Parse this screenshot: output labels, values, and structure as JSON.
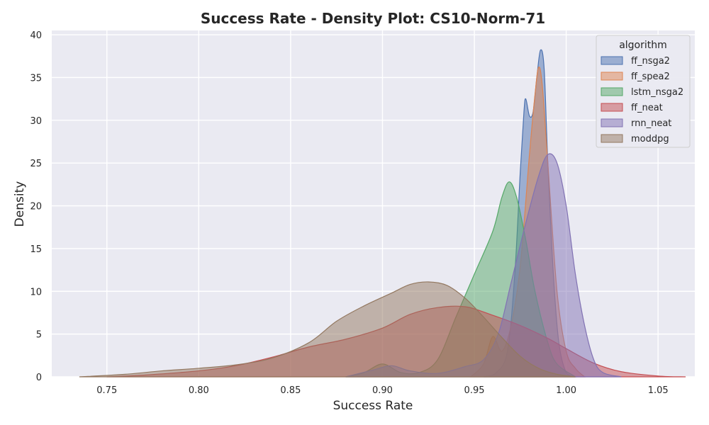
{
  "chart_data": {
    "type": "area",
    "title": "Success Rate - Density Plot: CS10-Norm-71",
    "xlabel": "Success Rate",
    "ylabel": "Density",
    "xlim": [
      0.72,
      1.07
    ],
    "ylim": [
      0,
      40.5
    ],
    "xticks": [
      0.75,
      0.8,
      0.85,
      0.9,
      0.95,
      1.0,
      1.05
    ],
    "xtick_labels": [
      "0.75",
      "0.80",
      "0.85",
      "0.90",
      "0.95",
      "1.00",
      "1.05"
    ],
    "yticks": [
      0,
      5,
      10,
      15,
      20,
      25,
      30,
      35,
      40
    ],
    "ytick_labels": [
      "0",
      "5",
      "10",
      "15",
      "20",
      "25",
      "30",
      "35",
      "40"
    ],
    "grid": true,
    "legend": {
      "title": "algorithm",
      "position": "top-right"
    },
    "series": [
      {
        "name": "ff_nsga2",
        "color": "#4c72b0",
        "points": [
          [
            0.955,
            0
          ],
          [
            0.962,
            0.5
          ],
          [
            0.968,
            3
          ],
          [
            0.972,
            12
          ],
          [
            0.975,
            24
          ],
          [
            0.977,
            31
          ],
          [
            0.978,
            32.5
          ],
          [
            0.98,
            30.5
          ],
          [
            0.982,
            31
          ],
          [
            0.984,
            35
          ],
          [
            0.986,
            38.2
          ],
          [
            0.988,
            36
          ],
          [
            0.99,
            25
          ],
          [
            0.993,
            12
          ],
          [
            0.996,
            4
          ],
          [
            1.0,
            0.5
          ],
          [
            1.005,
            0
          ]
        ]
      },
      {
        "name": "ff_spea2",
        "color": "#dd8452",
        "points": [
          [
            0.948,
            0
          ],
          [
            0.955,
            1.5
          ],
          [
            0.96,
            4.7
          ],
          [
            0.965,
            3
          ],
          [
            0.97,
            6
          ],
          [
            0.975,
            13
          ],
          [
            0.98,
            26
          ],
          [
            0.983,
            33
          ],
          [
            0.985,
            36.2
          ],
          [
            0.987,
            34
          ],
          [
            0.99,
            25
          ],
          [
            0.995,
            10
          ],
          [
            1.0,
            3
          ],
          [
            1.005,
            1
          ],
          [
            1.01,
            0
          ]
        ]
      },
      {
        "name": "lstm_nsga2",
        "color": "#55a868",
        "points": [
          [
            0.88,
            0
          ],
          [
            0.89,
            0.5
          ],
          [
            0.9,
            1.5
          ],
          [
            0.91,
            0.5
          ],
          [
            0.92,
            0.5
          ],
          [
            0.93,
            2
          ],
          [
            0.94,
            7
          ],
          [
            0.95,
            12
          ],
          [
            0.96,
            17
          ],
          [
            0.965,
            21
          ],
          [
            0.969,
            22.8
          ],
          [
            0.973,
            21
          ],
          [
            0.978,
            16
          ],
          [
            0.983,
            10
          ],
          [
            0.99,
            4
          ],
          [
            0.995,
            1.5
          ],
          [
            1.005,
            0
          ]
        ]
      },
      {
        "name": "ff_neat",
        "color": "#c44e52",
        "points": [
          [
            0.75,
            0
          ],
          [
            0.77,
            0.2
          ],
          [
            0.8,
            0.7
          ],
          [
            0.82,
            1.3
          ],
          [
            0.84,
            2.3
          ],
          [
            0.86,
            3.5
          ],
          [
            0.88,
            4.4
          ],
          [
            0.9,
            5.7
          ],
          [
            0.915,
            7.3
          ],
          [
            0.93,
            8.1
          ],
          [
            0.945,
            8.2
          ],
          [
            0.96,
            7.2
          ],
          [
            0.975,
            6
          ],
          [
            0.99,
            4.5
          ],
          [
            1.0,
            3.3
          ],
          [
            1.015,
            1.6
          ],
          [
            1.03,
            0.6
          ],
          [
            1.05,
            0.1
          ],
          [
            1.065,
            0
          ]
        ]
      },
      {
        "name": "rnn_neat",
        "color": "#8172b3",
        "points": [
          [
            0.88,
            0
          ],
          [
            0.895,
            0.8
          ],
          [
            0.905,
            1.3
          ],
          [
            0.915,
            0.7
          ],
          [
            0.93,
            0.4
          ],
          [
            0.945,
            1.2
          ],
          [
            0.955,
            2
          ],
          [
            0.963,
            5
          ],
          [
            0.97,
            11
          ],
          [
            0.978,
            18
          ],
          [
            0.985,
            23.5
          ],
          [
            0.99,
            26
          ],
          [
            0.995,
            25
          ],
          [
            1.0,
            20
          ],
          [
            1.005,
            12
          ],
          [
            1.01,
            6
          ],
          [
            1.015,
            2
          ],
          [
            1.02,
            0.5
          ],
          [
            1.03,
            0
          ]
        ]
      },
      {
        "name": "moddpg",
        "color": "#937860",
        "points": [
          [
            0.735,
            0
          ],
          [
            0.76,
            0.3
          ],
          [
            0.78,
            0.7
          ],
          [
            0.8,
            1
          ],
          [
            0.82,
            1.4
          ],
          [
            0.84,
            2.2
          ],
          [
            0.86,
            4
          ],
          [
            0.875,
            6.5
          ],
          [
            0.89,
            8.3
          ],
          [
            0.905,
            9.8
          ],
          [
            0.915,
            10.8
          ],
          [
            0.925,
            11.1
          ],
          [
            0.935,
            10.7
          ],
          [
            0.945,
            9.2
          ],
          [
            0.955,
            7
          ],
          [
            0.965,
            4.6
          ],
          [
            0.975,
            2.4
          ],
          [
            0.985,
            1
          ],
          [
            0.995,
            0.3
          ],
          [
            1.005,
            0
          ]
        ]
      }
    ]
  }
}
